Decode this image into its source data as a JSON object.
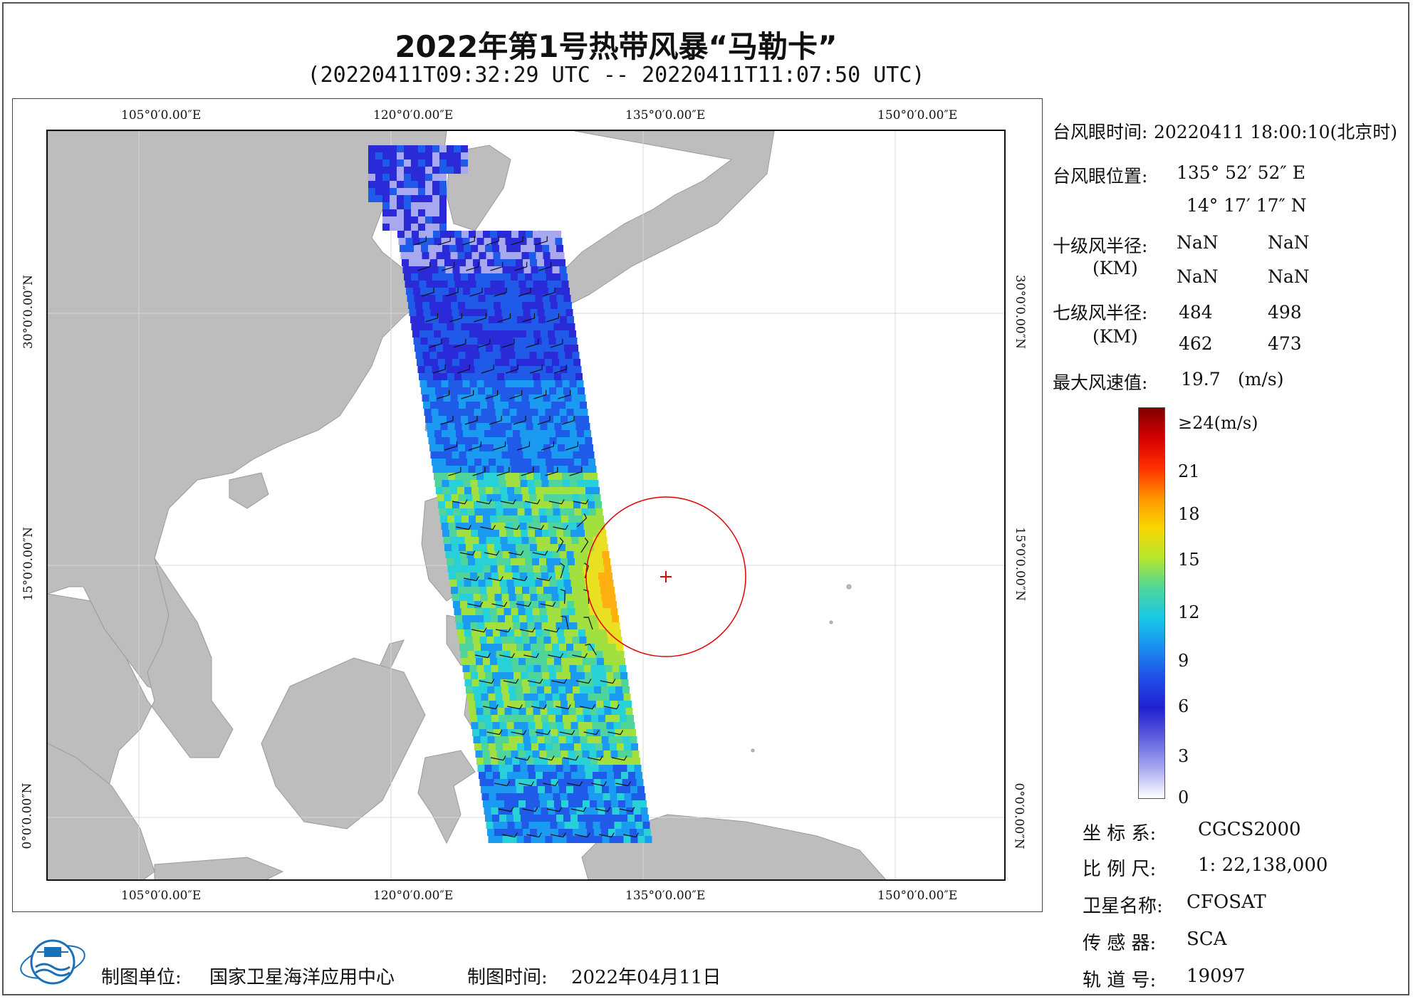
{
  "title": "2022年第1号热带风暴“马勒卡”",
  "subtitle": "(20220411T09:32:29 UTC -- 20220411T11:07:50 UTC)",
  "map": {
    "lon_labels": [
      "105°0′0.00″E",
      "120°0′0.00″E",
      "135°0′0.00″E",
      "150°0′0.00″E"
    ],
    "lat_labels": [
      "30°0′0.00″N",
      "15°0′0.00″N",
      "0°0′0.00″N"
    ],
    "land_color": "#bdbdbd",
    "sea_color": "#ffffff",
    "typhoon_circle_color": "#e00000"
  },
  "info": {
    "eye_time_label": "台风眼时间:",
    "eye_time_value": "20220411 18:00:10(北京时)",
    "eye_pos_label": "台风眼位置:",
    "eye_lon": "135° 52′ 52″ E",
    "eye_lat": "14° 17′ 17″ N",
    "r10_label": "十级风半径:",
    "r10_unit": "(KM)",
    "r10_values": [
      "NaN",
      "NaN",
      "NaN",
      "NaN"
    ],
    "r7_label": "七级风半径:",
    "r7_unit": "(KM)",
    "r7_values": [
      "484",
      "498",
      "462",
      "473"
    ],
    "max_wind_label": "最大风速值:",
    "max_wind_value": "19.7",
    "max_wind_unit": "(m/s)"
  },
  "legend": {
    "labels": [
      "≥24(m/s)",
      "21",
      "18",
      "15",
      "12",
      "9",
      "6",
      "3",
      "0"
    ],
    "colors": [
      "#800000",
      "#d40000",
      "#ff3000",
      "#ff9500",
      "#f8d800",
      "#b4e62e",
      "#4fd59c",
      "#18c9e6",
      "#1a8cf0",
      "#1f4ee6",
      "#2020d0",
      "#6060e0",
      "#a8a8f0",
      "#ffffff"
    ]
  },
  "meta": {
    "crs_label": "坐 标 系:",
    "crs_value": "CGCS2000",
    "scale_label": "比 例 尺:",
    "scale_value": "1: 22,138,000",
    "satellite_label": "卫星名称:",
    "satellite_value": "CFOSAT",
    "sensor_label": "传 感 器:",
    "sensor_value": "SCA",
    "orbit_label": "轨 道 号:",
    "orbit_value": "19097"
  },
  "footer": {
    "producer_label": "制图单位:",
    "producer_value": "国家卫星海洋应用中心",
    "date_label": "制图时间:",
    "date_value": "2022年04月11日"
  }
}
